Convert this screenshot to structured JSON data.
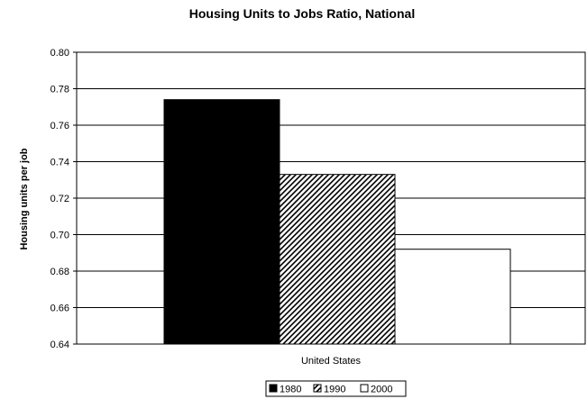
{
  "chart_data": {
    "type": "bar",
    "title": "Housing Units to Jobs Ratio, National",
    "xlabel": "",
    "ylabel": "Housing units per job",
    "categories": [
      "United States"
    ],
    "series": [
      {
        "name": "1980",
        "values": [
          0.774
        ],
        "fill": "solid-black"
      },
      {
        "name": "1990",
        "values": [
          0.733
        ],
        "fill": "diagonal-hatch"
      },
      {
        "name": "2000",
        "values": [
          0.692
        ],
        "fill": "white"
      }
    ],
    "ylim": [
      0.64,
      0.8
    ],
    "yticks": [
      "0.64",
      "0.66",
      "0.68",
      "0.70",
      "0.72",
      "0.74",
      "0.76",
      "0.78",
      "0.80"
    ],
    "grid": true,
    "legend_position": "bottom-center",
    "colors": {
      "bar_1980": "#000000",
      "bar_2000": "#ffffff",
      "outline": "#000000",
      "gridline": "#000000"
    }
  }
}
